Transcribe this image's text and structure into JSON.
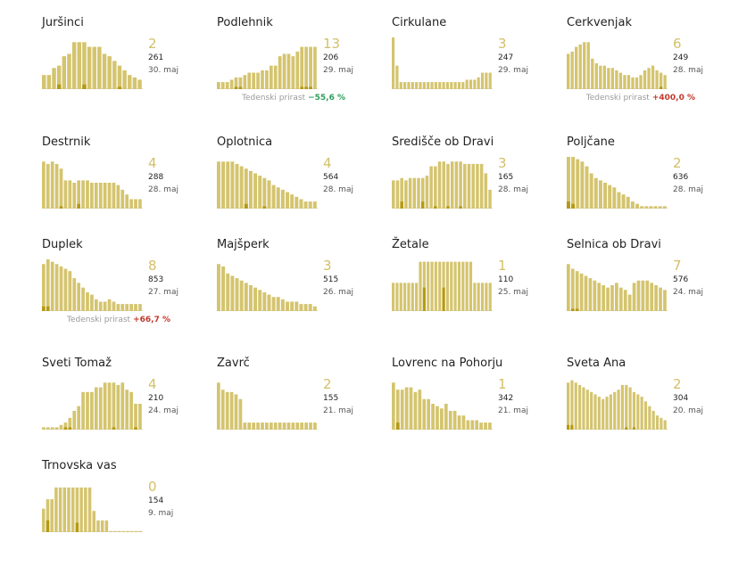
{
  "colors": {
    "bar": "#d4c46e",
    "bar_dark": "#b59a12",
    "active": "#d4bf68",
    "up": "#c0392b",
    "down": "#2e9e5b"
  },
  "chart_data": [
    {
      "type": "bar",
      "title": "Juršinci",
      "active": "2",
      "total": "261",
      "date": "30. maj",
      "values": [
        6,
        6,
        9,
        10,
        14,
        15,
        20,
        20,
        20,
        18,
        18,
        18,
        15,
        14,
        12,
        10,
        8,
        6,
        5,
        4
      ],
      "dark": [
        0,
        0,
        0,
        2,
        0,
        0,
        0,
        0,
        2,
        0,
        0,
        0,
        0,
        0,
        0,
        1,
        0,
        0,
        0,
        0
      ]
    },
    {
      "type": "bar",
      "title": "Podlehnik",
      "active": "13",
      "total": "206",
      "date": "29. maj",
      "growth_label": "Tedenski prirast",
      "growth": "−55,6 %",
      "growth_dir": "down",
      "values": [
        3,
        3,
        3,
        4,
        5,
        5,
        6,
        7,
        7,
        7,
        8,
        8,
        10,
        10,
        14,
        15,
        15,
        14,
        16,
        18,
        18,
        18,
        18
      ],
      "dark": [
        0,
        0,
        0,
        0,
        1,
        1,
        0,
        0,
        0,
        0,
        0,
        0,
        0,
        0,
        0,
        0,
        0,
        0,
        0,
        1,
        1,
        1,
        0
      ]
    },
    {
      "type": "bar",
      "title": "Cirkulane",
      "active": "3",
      "total": "247",
      "date": "29. maj",
      "values": [
        22,
        10,
        3,
        3,
        3,
        3,
        3,
        3,
        3,
        3,
        3,
        3,
        3,
        3,
        3,
        3,
        3,
        3,
        3,
        4,
        4,
        4,
        5,
        7,
        7,
        7
      ],
      "dark": [
        0,
        0,
        0,
        0,
        0,
        0,
        0,
        0,
        0,
        0,
        0,
        0,
        0,
        0,
        0,
        0,
        0,
        0,
        0,
        0,
        0,
        0,
        0,
        0,
        0,
        0
      ]
    },
    {
      "type": "bar",
      "title": "Cerkvenjak",
      "active": "6",
      "total": "249",
      "date": "28. maj",
      "growth_label": "Tedenski prirast",
      "growth": "+400,0 %",
      "growth_dir": "up",
      "values": [
        15,
        16,
        18,
        19,
        20,
        20,
        13,
        11,
        10,
        10,
        9,
        9,
        8,
        7,
        6,
        6,
        5,
        5,
        6,
        8,
        9,
        10,
        8,
        7,
        6
      ],
      "dark": [
        0,
        0,
        0,
        0,
        0,
        0,
        0,
        0,
        0,
        0,
        0,
        0,
        0,
        0,
        0,
        0,
        0,
        0,
        0,
        0,
        0,
        0,
        0,
        1,
        0
      ]
    },
    {
      "type": "bar",
      "title": "Destrnik",
      "active": "4",
      "total": "288",
      "date": "28. maj",
      "values": [
        20,
        19,
        20,
        19,
        17,
        12,
        12,
        11,
        12,
        12,
        12,
        11,
        11,
        11,
        11,
        11,
        11,
        10,
        8,
        6,
        4,
        4,
        4
      ],
      "dark": [
        0,
        0,
        0,
        0,
        1,
        0,
        0,
        0,
        2,
        0,
        0,
        0,
        0,
        0,
        0,
        0,
        0,
        0,
        0,
        0,
        0,
        0,
        0
      ]
    },
    {
      "type": "bar",
      "title": "Oplotnica",
      "active": "4",
      "total": "564",
      "date": "28. maj",
      "values": [
        20,
        20,
        20,
        20,
        19,
        18,
        17,
        16,
        15,
        14,
        13,
        12,
        10,
        9,
        8,
        7,
        6,
        5,
        4,
        3,
        3,
        3
      ],
      "dark": [
        0,
        0,
        0,
        0,
        0,
        0,
        2,
        0,
        0,
        0,
        1,
        0,
        0,
        0,
        0,
        0,
        0,
        0,
        0,
        0,
        0,
        0
      ]
    },
    {
      "type": "bar",
      "title": "Središče ob Dravi",
      "active": "3",
      "total": "165",
      "date": "28. maj",
      "values": [
        12,
        12,
        13,
        12,
        13,
        13,
        13,
        13,
        14,
        18,
        18,
        20,
        20,
        19,
        20,
        20,
        20,
        19,
        19,
        19,
        19,
        19,
        15,
        8
      ],
      "dark": [
        0,
        0,
        3,
        0,
        0,
        0,
        0,
        3,
        0,
        0,
        1,
        0,
        0,
        1,
        0,
        0,
        1,
        0,
        0,
        0,
        0,
        0,
        0,
        0
      ]
    },
    {
      "type": "bar",
      "title": "Poljčane",
      "active": "2",
      "total": "636",
      "date": "28. maj",
      "values": [
        22,
        22,
        21,
        20,
        18,
        15,
        13,
        12,
        11,
        10,
        9,
        7,
        6,
        5,
        3,
        2,
        1,
        1,
        1,
        1,
        1,
        1
      ],
      "dark": [
        3,
        2,
        0,
        0,
        0,
        0,
        0,
        0,
        0,
        0,
        0,
        0,
        0,
        0,
        0,
        0,
        0,
        0,
        0,
        0,
        0,
        0
      ]
    },
    {
      "type": "bar",
      "title": "Duplek",
      "active": "8",
      "total": "853",
      "date": "27. maj",
      "growth_label": "Tedenski prirast",
      "growth": "+66,7 %",
      "growth_dir": "up",
      "values": [
        20,
        22,
        21,
        20,
        19,
        18,
        17,
        14,
        12,
        10,
        8,
        7,
        5,
        4,
        4,
        5,
        4,
        3,
        3,
        3,
        3,
        3,
        3
      ],
      "dark": [
        2,
        2,
        0,
        0,
        0,
        0,
        0,
        0,
        0,
        0,
        0,
        0,
        0,
        0,
        0,
        0,
        0,
        0,
        0,
        0,
        0,
        0,
        0
      ]
    },
    {
      "type": "bar",
      "title": "Majšperk",
      "active": "3",
      "total": "515",
      "date": "26. maj",
      "values": [
        20,
        19,
        16,
        15,
        14,
        13,
        12,
        11,
        10,
        9,
        8,
        7,
        6,
        6,
        5,
        4,
        4,
        4,
        3,
        3,
        3,
        2
      ],
      "dark": [
        0,
        0,
        0,
        0,
        0,
        0,
        0,
        0,
        0,
        0,
        0,
        0,
        0,
        0,
        0,
        0,
        0,
        0,
        0,
        0,
        0,
        0
      ]
    },
    {
      "type": "bar",
      "title": "Žetale",
      "active": "1",
      "total": "110",
      "date": "25. maj",
      "values": [
        12,
        12,
        12,
        12,
        12,
        12,
        12,
        21,
        21,
        21,
        21,
        21,
        21,
        21,
        21,
        21,
        21,
        21,
        21,
        21,
        21,
        12,
        12,
        12,
        12,
        12
      ],
      "dark": [
        0,
        0,
        0,
        0,
        0,
        0,
        0,
        0,
        10,
        0,
        0,
        0,
        0,
        10,
        0,
        0,
        0,
        0,
        0,
        0,
        0,
        0,
        0,
        0,
        0,
        0
      ]
    },
    {
      "type": "bar",
      "title": "Selnica ob Dravi",
      "active": "7",
      "total": "576",
      "date": "24. maj",
      "values": [
        20,
        18,
        17,
        16,
        15,
        14,
        13,
        12,
        11,
        10,
        11,
        12,
        10,
        9,
        7,
        12,
        13,
        13,
        13,
        12,
        11,
        10,
        9
      ],
      "dark": [
        0,
        1,
        1,
        0,
        0,
        0,
        0,
        0,
        0,
        0,
        0,
        0,
        0,
        0,
        0,
        0,
        0,
        0,
        0,
        0,
        0,
        0,
        0
      ]
    },
    {
      "type": "bar",
      "title": "Sveti Tomaž",
      "active": "4",
      "total": "210",
      "date": "24. maj",
      "values": [
        1,
        1,
        1,
        1,
        2,
        3,
        5,
        8,
        10,
        16,
        16,
        16,
        18,
        18,
        20,
        20,
        20,
        19,
        20,
        17,
        16,
        11,
        11
      ],
      "dark": [
        0,
        0,
        0,
        0,
        0,
        1,
        1,
        0,
        0,
        0,
        0,
        0,
        0,
        0,
        0,
        0,
        1,
        0,
        0,
        0,
        0,
        1,
        0
      ]
    },
    {
      "type": "bar",
      "title": "Zavrč",
      "active": "2",
      "total": "155",
      "date": "21. maj",
      "values": [
        20,
        17,
        16,
        16,
        15,
        13,
        3,
        3,
        3,
        3,
        3,
        3,
        3,
        3,
        3,
        3,
        3,
        3,
        3,
        3,
        3,
        3,
        3
      ],
      "dark": [
        0,
        0,
        0,
        0,
        0,
        0,
        0,
        0,
        0,
        0,
        0,
        0,
        0,
        0,
        0,
        0,
        0,
        0,
        0,
        0,
        0,
        0,
        0
      ]
    },
    {
      "type": "bar",
      "title": "Lovrenc na Pohorju",
      "active": "1",
      "total": "342",
      "date": "21. maj",
      "values": [
        20,
        17,
        17,
        18,
        18,
        16,
        17,
        13,
        13,
        11,
        10,
        9,
        11,
        8,
        8,
        6,
        6,
        4,
        4,
        4,
        3,
        3,
        3
      ],
      "dark": [
        0,
        3,
        0,
        0,
        0,
        0,
        0,
        0,
        0,
        0,
        0,
        0,
        0,
        0,
        0,
        0,
        0,
        0,
        0,
        0,
        0,
        0,
        0
      ]
    },
    {
      "type": "bar",
      "title": "Sveta Ana",
      "active": "2",
      "total": "304",
      "date": "20. maj",
      "values": [
        20,
        21,
        20,
        19,
        18,
        17,
        16,
        15,
        14,
        13,
        14,
        15,
        16,
        17,
        19,
        19,
        18,
        16,
        15,
        14,
        12,
        10,
        8,
        6,
        5,
        4
      ],
      "dark": [
        2,
        2,
        0,
        0,
        0,
        0,
        0,
        0,
        0,
        0,
        0,
        0,
        0,
        0,
        0,
        1,
        0,
        1,
        0,
        0,
        0,
        0,
        0,
        0,
        0,
        0
      ]
    },
    {
      "type": "bar",
      "title": "Trnovska vas",
      "active": "0",
      "total": "154",
      "date": "9. maj",
      "values": [
        10,
        14,
        14,
        19,
        19,
        19,
        19,
        19,
        19,
        19,
        19,
        19,
        9,
        5,
        5,
        5,
        0,
        0,
        0,
        0,
        0,
        0,
        0,
        0
      ],
      "dark": [
        0,
        5,
        0,
        0,
        0,
        0,
        0,
        0,
        4,
        0,
        0,
        0,
        0,
        0,
        0,
        0,
        0,
        0,
        0,
        0,
        0,
        0,
        0,
        0
      ]
    }
  ]
}
